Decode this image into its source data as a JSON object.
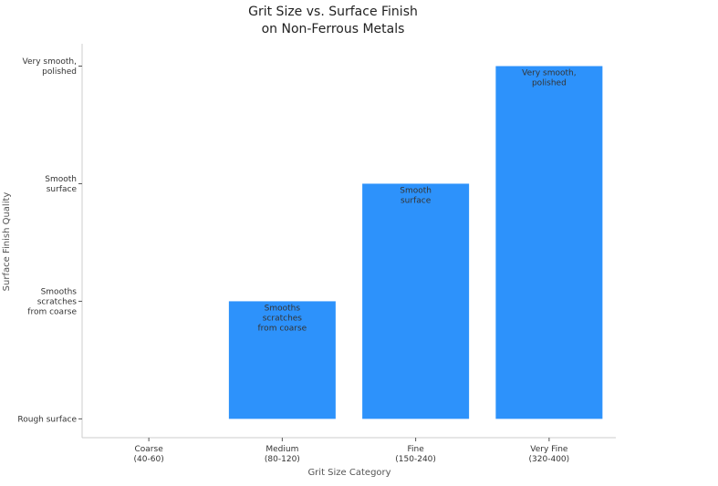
{
  "chart_data": {
    "type": "bar",
    "title": "Grit Size vs. Surface Finish\non Non-Ferrous Metals",
    "xlabel": "Grit Size Category",
    "ylabel": "Surface Finish Quality",
    "categories": [
      "Coarse\n(40-60)",
      "Medium\n(80-120)",
      "Fine\n(150-240)",
      "Very Fine\n(320-400)"
    ],
    "values": [
      0,
      1,
      2,
      3
    ],
    "value_labels": [
      null,
      "Smooths\nscratches\nfrom coarse",
      "Smooth\nsurface",
      "Very smooth,\npolished"
    ],
    "color": "#2d92fb",
    "ylim": [
      -0.16,
      3.19
    ],
    "yticks": [
      {
        "value": 0,
        "label": "Rough surface"
      },
      {
        "value": 1,
        "label": "Smooths\nscratches\nfrom coarse"
      },
      {
        "value": 2,
        "label": "Smooth\nsurface"
      },
      {
        "value": 3,
        "label": "Very smooth,\npolished"
      }
    ],
    "grid": false
  }
}
